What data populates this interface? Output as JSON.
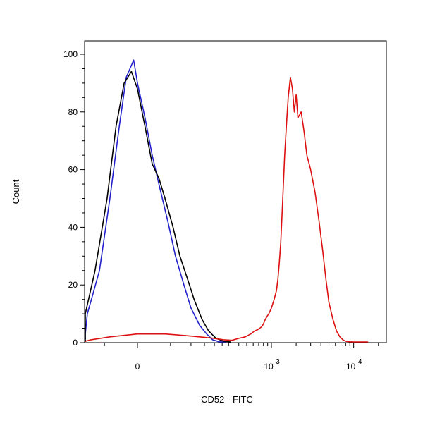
{
  "chart_data": {
    "type": "line",
    "title": "",
    "xlabel": "CD52 - FITC",
    "ylabel": "Count",
    "x_scale": "biexponential",
    "xlim": [
      -300,
      20000
    ],
    "ylim": [
      0,
      105
    ],
    "grid": false,
    "legend": "none",
    "y_ticks": [
      {
        "value": 0,
        "label": "0"
      },
      {
        "value": 20,
        "label": "20"
      },
      {
        "value": 40,
        "label": "40"
      },
      {
        "value": 60,
        "label": "60"
      },
      {
        "value": 80,
        "label": "80"
      },
      {
        "value": 100,
        "label": "100"
      }
    ],
    "x_tick_labels": [
      {
        "value": 0,
        "base": "0",
        "exp": ""
      },
      {
        "value": 1000,
        "base": "10",
        "exp": "3"
      },
      {
        "value": 10000,
        "base": "10",
        "exp": "4"
      }
    ],
    "series": [
      {
        "color": "#2222cc",
        "x": [
          -250,
          -180,
          -130,
          -90,
          -60,
          -40,
          -25,
          -15,
          -5,
          0,
          10,
          20,
          30,
          45,
          60,
          80,
          100,
          130,
          160,
          190,
          230,
          280
        ],
        "y": [
          0,
          1,
          3,
          10,
          25,
          50,
          75,
          92,
          98,
          90,
          78,
          65,
          55,
          42,
          30,
          20,
          12,
          6,
          3,
          1,
          0.3,
          0
        ]
      },
      {
        "color": "#000000",
        "x": [
          -260,
          -190,
          -140,
          -100,
          -70,
          -45,
          -30,
          -18,
          -8,
          0,
          10,
          20,
          30,
          40,
          55,
          70,
          90,
          110,
          140,
          170,
          210,
          260,
          320
        ],
        "y": [
          0,
          1,
          3,
          10,
          25,
          50,
          75,
          90,
          94,
          88,
          75,
          62,
          57,
          50,
          40,
          30,
          22,
          15,
          8,
          4,
          1.5,
          0.5,
          0
        ]
      },
      {
        "color": "#dd1111",
        "x": [
          -300,
          -150,
          -80,
          -40,
          0,
          40,
          80,
          130,
          200,
          260,
          330,
          400,
          480,
          560,
          620,
          680,
          720,
          760,
          800,
          840,
          880,
          930,
          1000,
          1080,
          1150,
          1200,
          1250,
          1300,
          1350,
          1400,
          1450,
          1520,
          1600,
          1700,
          1800,
          1900,
          2000,
          2100,
          2300,
          2500,
          2700,
          3000,
          3400,
          3800,
          4200,
          4600,
          5000,
          5600,
          6200,
          6800,
          7400,
          8000,
          9000,
          10000,
          12000,
          15000
        ],
        "y": [
          0,
          0.5,
          1,
          2,
          3,
          3,
          2.5,
          2,
          1.5,
          1,
          0.8,
          1.5,
          2,
          3,
          4,
          4.5,
          5,
          5.5,
          6.5,
          8,
          9,
          10,
          12,
          15,
          18,
          22,
          28,
          35,
          45,
          55,
          65,
          75,
          85,
          92,
          88,
          80,
          86,
          78,
          80,
          73,
          65,
          60,
          52,
          42,
          32,
          22,
          14,
          8,
          4,
          2,
          1,
          0.5,
          0.3,
          0.2,
          0.1,
          0
        ]
      }
    ]
  }
}
